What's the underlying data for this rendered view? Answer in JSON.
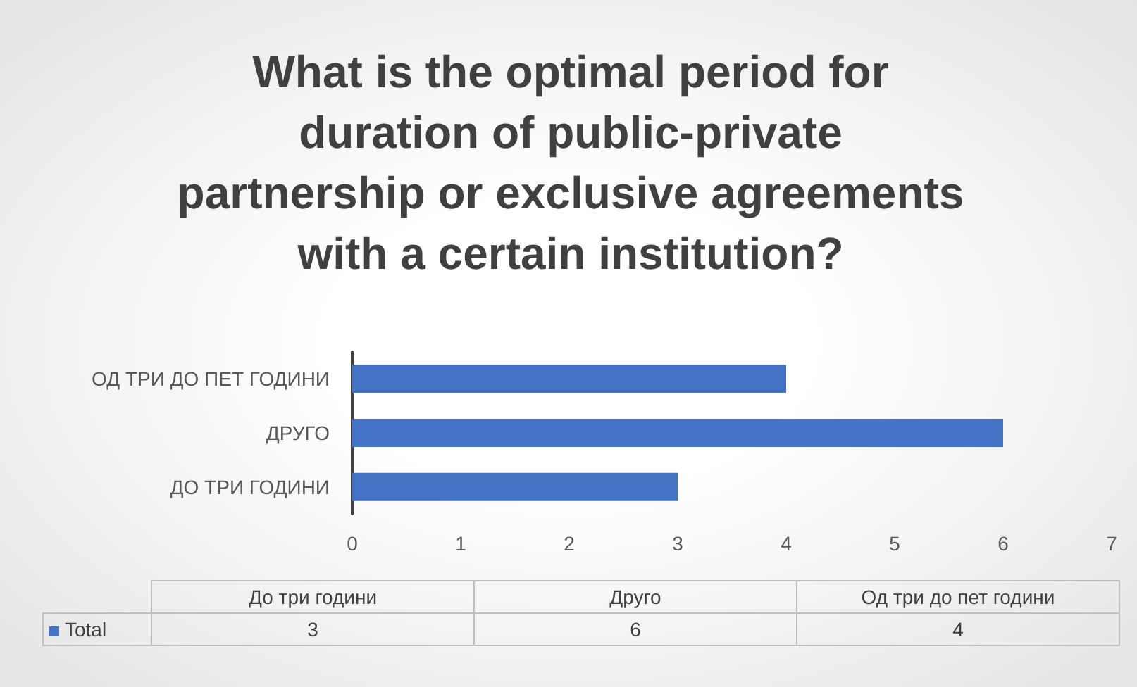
{
  "chart_data": {
    "type": "bar",
    "orientation": "horizontal",
    "title": "What is the optimal period for duration of public-private partnership or exclusive agreements with a certain institution?",
    "categories": [
      "ОД ТРИ ДО ПЕТ ГОДИНИ",
      "ДРУГО",
      "ДО ТРИ ГОДИНИ"
    ],
    "series": [
      {
        "name": "Total",
        "color": "#4472c4",
        "values": [
          4,
          6,
          3
        ]
      }
    ],
    "xlim": [
      0,
      7
    ],
    "xticks": [
      0,
      1,
      2,
      3,
      4,
      5,
      6,
      7
    ],
    "grid": false,
    "legend": "bottom",
    "annotations": [
      "До три години",
      "Друго",
      "Од три до пет години",
      "3",
      "6",
      "4"
    ]
  }
}
